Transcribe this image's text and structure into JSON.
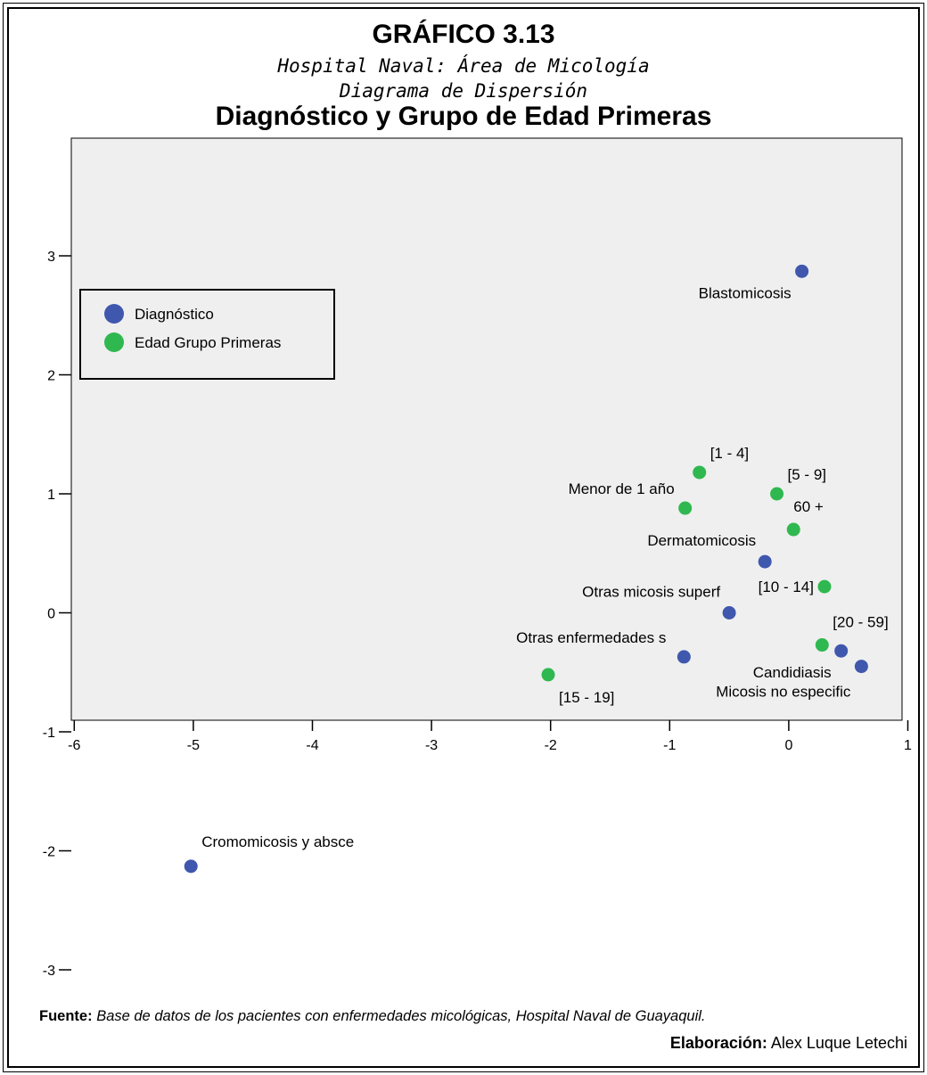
{
  "header": {
    "figure_number": "GRÁFICO 3.13",
    "subtitle_1": "Hospital Naval: Área de Micología",
    "subtitle_2": "Diagrama de Dispersión",
    "title": "Diagnóstico y Grupo de Edad Primeras"
  },
  "footer": {
    "source_label": "Fuente:",
    "source_text": "Base de datos de los pacientes con enfermedades micológicas, Hospital Naval de Guayaquil.",
    "credit_label": "Elaboración:",
    "credit_text": "Alex Luque Letechi"
  },
  "chart_data": {
    "type": "scatter",
    "xlim": [
      -6,
      1
    ],
    "ylim": [
      -3,
      4
    ],
    "x_ticks": [
      -6,
      -5,
      -4,
      -3,
      -2,
      -1,
      0,
      1
    ],
    "y_ticks": [
      -3,
      -2,
      -1,
      0,
      1,
      2,
      3
    ],
    "grid": false,
    "background": "#efefef",
    "legend_position": "top-left",
    "series": [
      {
        "name": "Diagnóstico",
        "color": "#3f57ad",
        "points": [
          {
            "x": 0.11,
            "y": 2.87,
            "label": "Blastomicosis"
          },
          {
            "x": -0.2,
            "y": 0.43,
            "label": "Dermatomicosis"
          },
          {
            "x": -0.5,
            "y": 0.0,
            "label": "Otras micosis superf"
          },
          {
            "x": -0.88,
            "y": -0.37,
            "label": "Otras enfermedades s"
          },
          {
            "x": 0.44,
            "y": -0.32,
            "label": "Candidiasis"
          },
          {
            "x": 0.61,
            "y": -0.45,
            "label": "Micosis no especific"
          },
          {
            "x": -5.02,
            "y": -2.13,
            "label": "Cromomicosis y absce"
          }
        ]
      },
      {
        "name": "Edad Grupo Primeras",
        "color": "#2fb84f",
        "points": [
          {
            "x": -0.75,
            "y": 1.18,
            "label": "[1 - 4]"
          },
          {
            "x": -0.1,
            "y": 1.0,
            "label": "[5 - 9]"
          },
          {
            "x": -0.87,
            "y": 0.88,
            "label": "Menor de 1 año"
          },
          {
            "x": 0.04,
            "y": 0.7,
            "label": "60 +"
          },
          {
            "x": 0.3,
            "y": 0.22,
            "label": "[10 - 14]"
          },
          {
            "x": 0.28,
            "y": -0.27,
            "label": "[20 - 59]"
          },
          {
            "x": -2.02,
            "y": -0.52,
            "label": "[15 - 19]"
          }
        ]
      }
    ]
  }
}
